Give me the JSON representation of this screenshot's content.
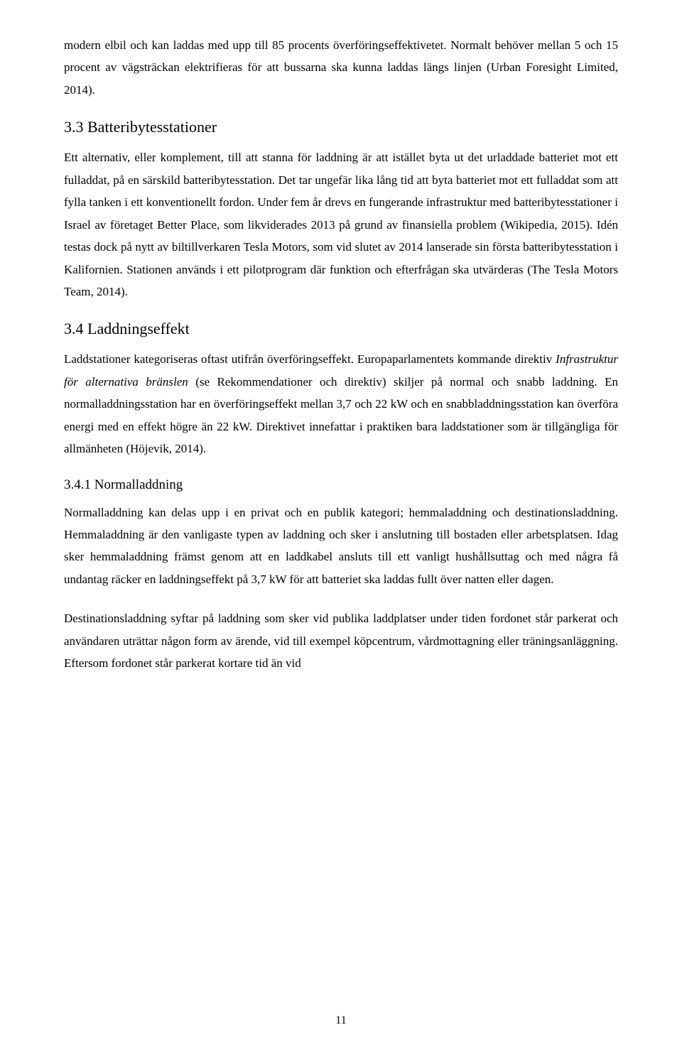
{
  "paragraphs": {
    "p1": "modern elbil och kan laddas med upp till 85 procents överföringseffektivetet. Normalt behöver mellan 5 och 15 procent av vägsträckan elektrifieras för att bussarna ska kunna laddas längs linjen (Urban Foresight Limited, 2014).",
    "p2a": "Ett alternativ, eller komplement, till att stanna för laddning är att istället byta ut det urladdade batteriet mot ett fulladdat, på en särskild batteribytesstation. Det tar ungefär lika lång tid att byta batteriet mot ett fulladdat som att fylla tanken i ett konventionellt fordon. Under fem år drevs en fungerande infrastruktur med batteribytesstationer i Israel av företaget Better Place, som likviderades 2013 på grund av finansiella problem (Wikipedia, 2015). Idén testas dock på nytt av biltillverkaren Tesla Motors, som vid slutet av 2014 lanserade sin första batteribytesstation i Kalifornien. Stationen används i ett pilotprogram där funktion och efterfrågan ska utvärderas (The Tesla Motors Team, 2014).",
    "p3a": "Laddstationer kategoriseras oftast utifrån överföringseffekt. Europaparlamentets kommande direktiv ",
    "p3italic": "Infrastruktur för alternativa bränslen",
    "p3b": " (se Rekommendationer och direktiv) skiljer på normal och snabb laddning. En normalladdningsstation har en överföringseffekt mellan 3,7 och 22 kW och en snabbladdningsstation kan överföra energi med en effekt högre än 22 kW. Direktivet innefattar i praktiken bara laddstationer som är tillgängliga för allmänheten (Höjevik, 2014).",
    "p4": "Normalladdning kan delas upp i en privat och en publik kategori; hemmaladdning och destinationsladdning. Hemmaladdning är den vanligaste typen av laddning och sker i anslutning till bostaden eller arbetsplatsen. Idag sker hemmaladdning främst genom att en laddkabel ansluts till ett vanligt hushållsuttag och med några få undantag räcker en laddningseffekt på 3,7 kW för att batteriet ska laddas fullt över natten eller dagen.",
    "p5": "Destinationsladdning syftar på laddning som sker vid publika laddplatser under tiden fordonet står parkerat och användaren uträttar någon form av ärende, vid till exempel köpcentrum, vårdmottagning eller träningsanläggning. Eftersom fordonet står parkerat kortare tid än vid"
  },
  "headings": {
    "h33": "3.3 Batteribytesstationer",
    "h34": "3.4 Laddningseffekt",
    "h341": "3.4.1 Normalladdning"
  },
  "pageNumber": "11"
}
